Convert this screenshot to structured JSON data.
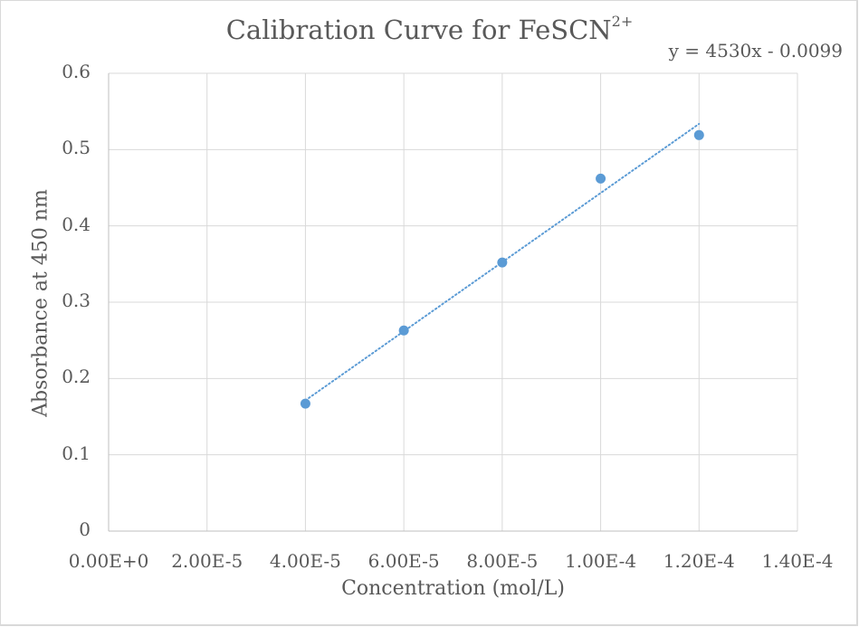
{
  "chart_data": {
    "type": "scatter",
    "title": "Calibration Curve for FeSCN",
    "title_superscript": "2+",
    "xlabel": "Concentration (mol/L)",
    "ylabel": "Absorbance at 450 nm",
    "xlim": [
      0,
      0.00014
    ],
    "ylim": [
      0,
      0.6
    ],
    "grid": true,
    "legend": "none",
    "x_tick_labels": [
      "0.00E+0",
      "2.00E-5",
      "4.00E-5",
      "6.00E-5",
      "8.00E-5",
      "1.00E-4",
      "1.20E-4",
      "1.40E-4"
    ],
    "y_tick_labels": [
      "0",
      "0.1",
      "0.2",
      "0.3",
      "0.4",
      "0.5",
      "0.6"
    ],
    "series": [
      {
        "name": "Absorbance",
        "marker": "circle",
        "color": "#5b9bd5",
        "x": [
          4e-05,
          6e-05,
          8e-05,
          0.0001,
          0.00012
        ],
        "y": [
          0.167,
          0.263,
          0.352,
          0.462,
          0.519
        ]
      }
    ],
    "trendline": {
      "type": "linear",
      "style": "dotted",
      "color": "#5b9bd5",
      "slope": 4530,
      "intercept": -0.0099,
      "x_range": [
        4e-05,
        0.00012
      ],
      "equation_label": "y = 4530x - 0.0099"
    },
    "colors": {
      "text": "#595959",
      "grid": "#d9d9d9",
      "axis": "#bfbfbf",
      "series": "#5b9bd5"
    }
  }
}
